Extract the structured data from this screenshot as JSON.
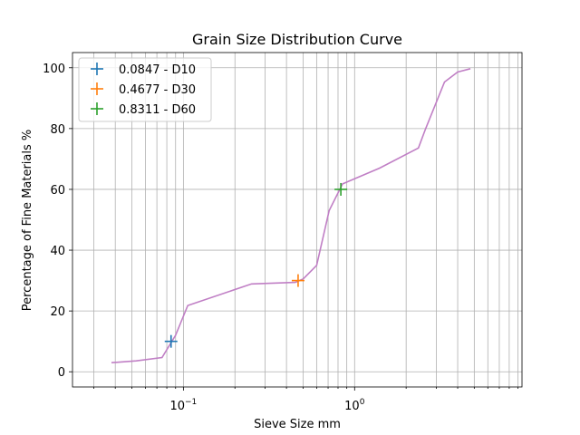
{
  "chart_data": {
    "type": "line",
    "title": "Grain Size Distribution Curve",
    "xlabel": "Sieve Size mm",
    "ylabel": "Percentage of Fine Materials %",
    "x_scale": "log",
    "xlim": [
      0.0225,
      9.5
    ],
    "ylim": [
      -5,
      105
    ],
    "grid": true,
    "x_ticks": [
      {
        "value": 0.1,
        "base": "10",
        "exp": "−1"
      },
      {
        "value": 1,
        "base": "10",
        "exp": "0"
      }
    ],
    "y_ticks": [
      0,
      20,
      40,
      60,
      80,
      100
    ],
    "series": [
      {
        "color": "#c07fc5",
        "x": [
          0.038,
          0.053,
          0.075,
          0.09,
          0.106,
          0.25,
          0.45,
          0.5,
          0.6,
          0.71,
          0.85,
          1.4,
          2.36,
          2.6,
          3.35,
          4.0,
          4.75
        ],
        "y": [
          3,
          3.6,
          4.7,
          12,
          21.8,
          28.9,
          29.4,
          30.5,
          35,
          53,
          61.8,
          67,
          73.6,
          80,
          95.3,
          98.6,
          99.7
        ]
      }
    ],
    "markers": [
      {
        "name": "0.8311 - D60",
        "x": 0.8311,
        "y": 60,
        "color": "#2ca02c"
      },
      {
        "name": "0.4677 - D30",
        "x": 0.4677,
        "y": 30,
        "color": "#ff7f0e"
      },
      {
        "name": "0.0847 - D10",
        "x": 0.0847,
        "y": 10,
        "color": "#1f77b4"
      }
    ],
    "legend": {
      "position": "upper-left",
      "entries": [
        {
          "label": "0.0847 - D10",
          "color": "#1f77b4"
        },
        {
          "label": "0.4677 - D30",
          "color": "#ff7f0e"
        },
        {
          "label": "0.8311 - D60",
          "color": "#2ca02c"
        }
      ]
    }
  }
}
